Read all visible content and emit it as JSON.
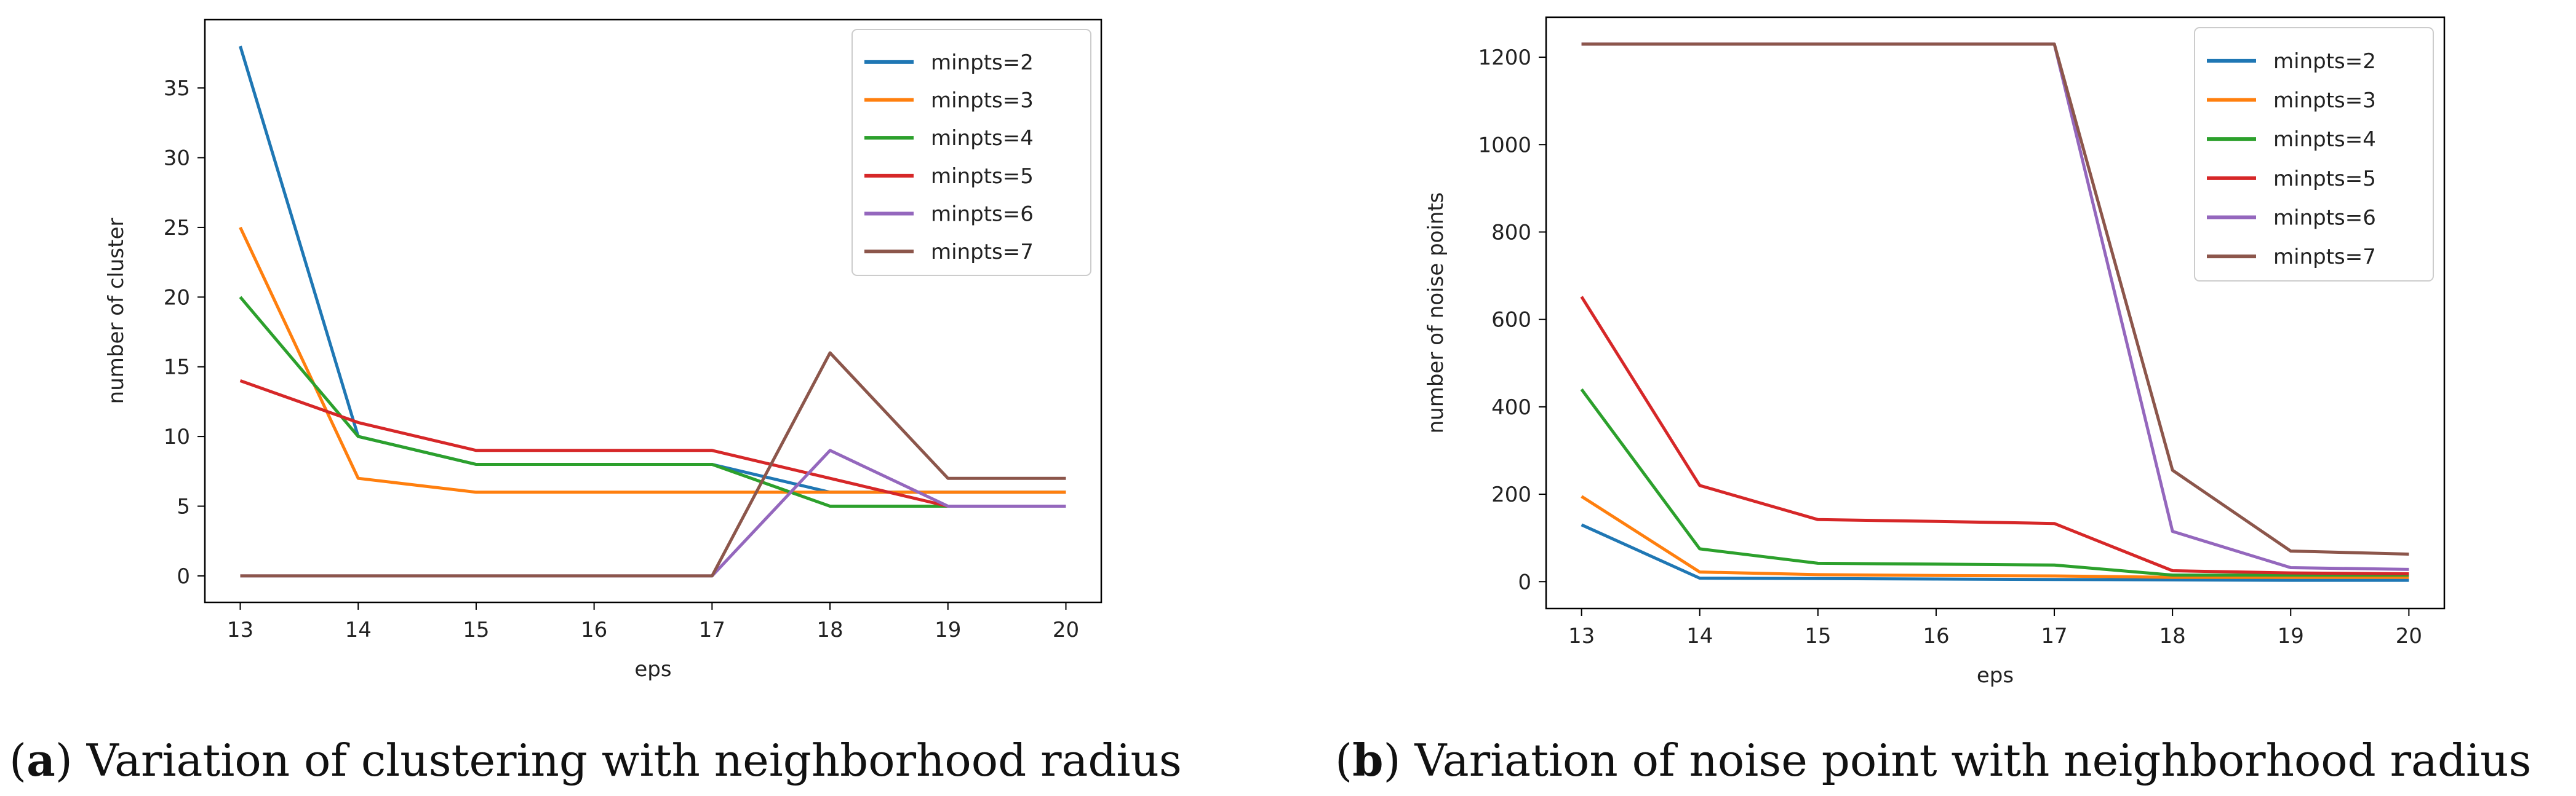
{
  "palette": {
    "minpts=2": "#1f77b4",
    "minpts=3": "#ff7f0e",
    "minpts=4": "#2ca02c",
    "minpts=5": "#d62728",
    "minpts=6": "#9467bd",
    "minpts=7": "#8c564b"
  },
  "chart_data": [
    {
      "type": "line",
      "panel": "a",
      "caption": {
        "letter": "a",
        "text": ") Variation of clustering with neighborhood radius",
        "open": "("
      },
      "xlabel": "eps",
      "ylabel": "number of  cluster",
      "xlim": [
        12.7,
        20.3
      ],
      "ylim": [
        -1.9,
        39.9
      ],
      "xticks": [
        13,
        14,
        15,
        16,
        17,
        18,
        19,
        20
      ],
      "yticks": [
        0,
        5,
        10,
        15,
        20,
        25,
        30,
        35
      ],
      "legend_position": "top-right",
      "x": [
        13,
        14,
        15,
        16,
        17,
        18,
        19,
        20
      ],
      "series": [
        {
          "name": "minpts=2",
          "values": [
            38,
            10,
            8,
            8,
            8,
            6,
            6,
            6
          ]
        },
        {
          "name": "minpts=3",
          "values": [
            25,
            7,
            6,
            6,
            6,
            6,
            6,
            6
          ]
        },
        {
          "name": "minpts=4",
          "values": [
            20,
            10,
            8,
            8,
            8,
            5,
            5,
            5
          ]
        },
        {
          "name": "minpts=5",
          "values": [
            14,
            11,
            9,
            9,
            9,
            7,
            5,
            5
          ]
        },
        {
          "name": "minpts=6",
          "values": [
            0,
            0,
            0,
            0,
            0,
            9,
            5,
            5
          ]
        },
        {
          "name": "minpts=7",
          "values": [
            0,
            0,
            0,
            0,
            0,
            16,
            7,
            7
          ]
        }
      ]
    },
    {
      "type": "line",
      "panel": "b",
      "caption": {
        "letter": "b",
        "text": ") Variation of noise point with neighborhood radius",
        "open": "("
      },
      "xlabel": "eps",
      "ylabel": "number of  noise points",
      "xlim": [
        12.7,
        20.3
      ],
      "ylim": [
        -61.5,
        1291.5
      ],
      "xticks": [
        13,
        14,
        15,
        16,
        17,
        18,
        19,
        20
      ],
      "yticks": [
        0,
        200,
        400,
        600,
        800,
        1000,
        1200
      ],
      "legend_position": "top-right",
      "x": [
        13,
        14,
        15,
        16,
        17,
        18,
        19,
        20
      ],
      "series": [
        {
          "name": "minpts=2",
          "values": [
            130,
            8,
            7,
            6,
            5,
            4,
            3,
            3
          ]
        },
        {
          "name": "minpts=3",
          "values": [
            195,
            22,
            16,
            14,
            13,
            10,
            10,
            10
          ]
        },
        {
          "name": "minpts=4",
          "values": [
            440,
            75,
            42,
            40,
            38,
            15,
            15,
            15
          ]
        },
        {
          "name": "minpts=5",
          "values": [
            652,
            220,
            142,
            138,
            133,
            25,
            20,
            18
          ]
        },
        {
          "name": "minpts=6",
          "values": [
            1230,
            1230,
            1230,
            1230,
            1230,
            115,
            32,
            28
          ]
        },
        {
          "name": "minpts=7",
          "values": [
            1230,
            1230,
            1230,
            1230,
            1230,
            255,
            70,
            63
          ]
        }
      ]
    }
  ]
}
